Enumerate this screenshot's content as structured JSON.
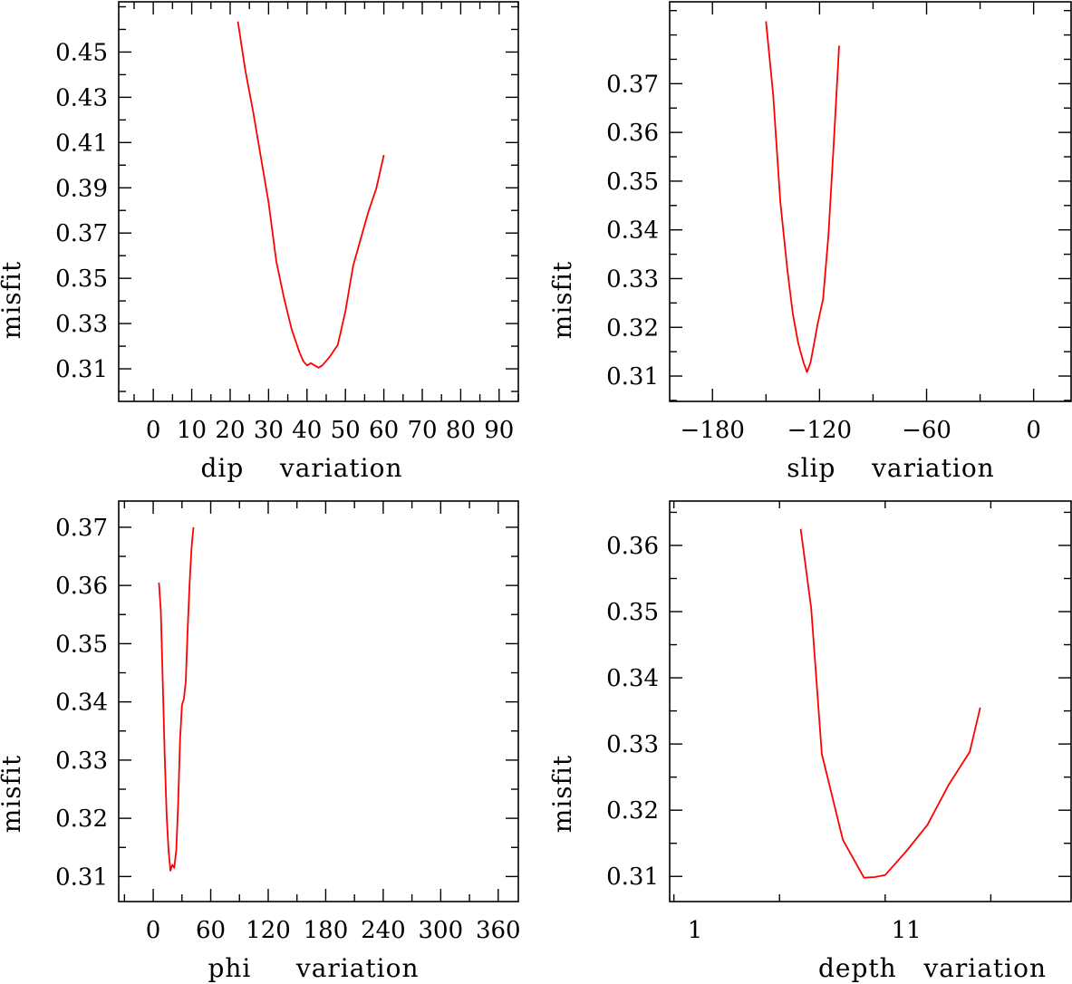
{
  "colors": {
    "series": "#ff0000",
    "axes": "#000000",
    "background": "#ffffff"
  },
  "chart_data": [
    {
      "type": "line",
      "xlabel": "dip    variation",
      "ylabel": "misfit",
      "xlim": [
        -9,
        95
      ],
      "ylim": [
        0.2956,
        0.4722
      ],
      "xticks": [
        0,
        10,
        20,
        30,
        40,
        50,
        60,
        70,
        80,
        90
      ],
      "xticklabels": [
        "0",
        "10",
        "20",
        "30",
        "40",
        "50",
        "60",
        "70",
        "80",
        "90"
      ],
      "yticks": [
        0.31,
        0.33,
        0.35,
        0.37,
        0.39,
        0.41,
        0.43,
        0.45
      ],
      "yticklabels": [
        "0.31",
        "0.33",
        "0.35",
        "0.37",
        "0.39",
        "0.41",
        "0.43",
        "0.45"
      ],
      "grid": false,
      "series": [
        {
          "x": [
            22,
            24,
            26,
            28,
            30,
            32,
            34,
            36,
            38,
            39,
            40,
            41,
            42,
            43,
            44,
            46,
            48,
            50,
            52,
            54,
            56,
            58,
            60
          ],
          "y": [
            0.4635,
            0.4415,
            0.4235,
            0.4035,
            0.3835,
            0.3575,
            0.3415,
            0.3275,
            0.3175,
            0.3135,
            0.3115,
            0.3125,
            0.3115,
            0.3105,
            0.3115,
            0.3155,
            0.3205,
            0.3355,
            0.3555,
            0.3675,
            0.3795,
            0.3895,
            0.4045
          ]
        }
      ]
    },
    {
      "type": "line",
      "xlabel": "slip    variation",
      "ylabel": "misfit",
      "xlim": [
        -204,
        21
      ],
      "ylim": [
        0.3048,
        0.3868
      ],
      "xticks": [
        -180,
        -120,
        -60,
        0
      ],
      "xticklabels": [
        "−180",
        "−120",
        "−60",
        "0"
      ],
      "yticks": [
        0.31,
        0.32,
        0.33,
        0.34,
        0.35,
        0.36,
        0.37
      ],
      "yticklabels": [
        "0.31",
        "0.32",
        "0.33",
        "0.34",
        "0.35",
        "0.36",
        "0.37"
      ],
      "grid": false,
      "series": [
        {
          "x": [
            -150,
            -146,
            -142,
            -138,
            -135,
            -132,
            -129,
            -127,
            -125,
            -123,
            -121,
            -118,
            -115,
            -112,
            -109
          ],
          "y": [
            0.3828,
            0.3678,
            0.3458,
            0.3318,
            0.3228,
            0.3168,
            0.3128,
            0.3108,
            0.3128,
            0.3168,
            0.3208,
            0.3258,
            0.3388,
            0.3578,
            0.3778
          ]
        }
      ]
    },
    {
      "type": "line",
      "xlabel": "phi     variation",
      "ylabel": "misfit",
      "xlim": [
        -36,
        381
      ],
      "ylim": [
        0.3057,
        0.3745
      ],
      "xticks": [
        0,
        60,
        120,
        180,
        240,
        300,
        360
      ],
      "xticklabels": [
        "0",
        "60",
        "120",
        "180",
        "240",
        "300",
        "360"
      ],
      "yticks": [
        0.31,
        0.32,
        0.33,
        0.34,
        0.35,
        0.36,
        0.37
      ],
      "yticklabels": [
        "0.31",
        "0.32",
        "0.33",
        "0.34",
        "0.35",
        "0.36",
        "0.37"
      ],
      "grid": false,
      "series": [
        {
          "x": [
            6,
            8,
            10,
            12,
            14,
            16,
            18,
            20,
            22,
            24,
            26,
            28,
            30,
            32,
            34,
            36,
            38,
            40,
            42
          ],
          "y": [
            0.3605,
            0.3555,
            0.3435,
            0.3305,
            0.3205,
            0.3145,
            0.311,
            0.312,
            0.3115,
            0.3145,
            0.3225,
            0.3335,
            0.3395,
            0.3405,
            0.3435,
            0.3525,
            0.3605,
            0.3665,
            0.37
          ]
        }
      ]
    },
    {
      "type": "line",
      "xlabel": "depth   variation",
      "ylabel": "misfit",
      "xlim": [
        -0.2,
        18.8
      ],
      "ylim": [
        0.3062,
        0.3667
      ],
      "xticks": [
        1,
        11
      ],
      "xticklabels": [
        "1",
        "11"
      ],
      "yticks": [
        0.31,
        0.32,
        0.33,
        0.34,
        0.35,
        0.36
      ],
      "yticklabels": [
        "0.31",
        "0.32",
        "0.33",
        "0.34",
        "0.35",
        "0.36"
      ],
      "grid": false,
      "series": [
        {
          "x": [
            6,
            6.5,
            7,
            8,
            9,
            9.5,
            10,
            11,
            12,
            13,
            14,
            14.5
          ],
          "y": [
            0.3625,
            0.3505,
            0.3285,
            0.3155,
            0.3098,
            0.3099,
            0.3102,
            0.3138,
            0.3178,
            0.3238,
            0.3288,
            0.3355
          ]
        }
      ]
    }
  ]
}
